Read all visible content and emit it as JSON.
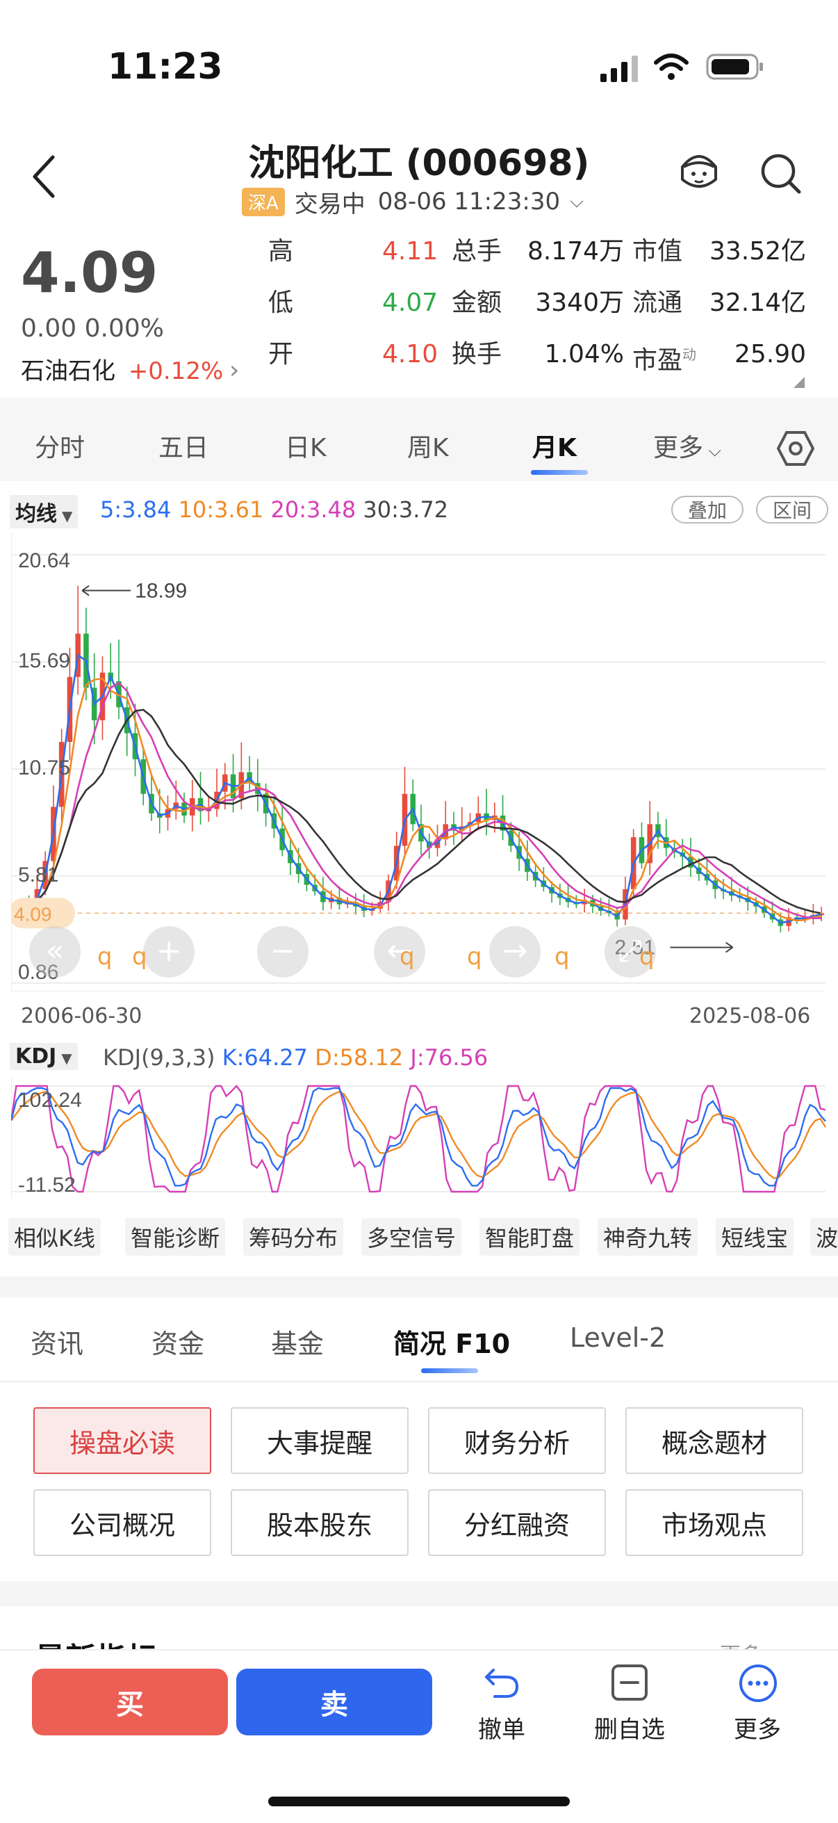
{
  "status": {
    "time": "11:23"
  },
  "header": {
    "title": "沈阳化工 (000698)",
    "market_badge": "深A",
    "status": "交易中",
    "datetime": "08-06 11:23:30"
  },
  "quote": {
    "price": "4.09",
    "change": "0.00 0.00%",
    "index_name": "石油石化",
    "index_change": "+0.12%",
    "rows": [
      {
        "l1": "高",
        "v1": "4.11",
        "l2": "总手",
        "v2": "8.174万",
        "l3": "市值",
        "v3": "33.52亿"
      },
      {
        "l1": "低",
        "v1": "4.07",
        "l2": "金额",
        "v2": "3340万",
        "l3": "流通",
        "v3": "32.14亿"
      },
      {
        "l1": "开",
        "v1": "4.10",
        "l2": "换手",
        "v2": "1.04%",
        "l3": "市盈",
        "l3sup": "动",
        "v3": "25.90"
      }
    ]
  },
  "tabs": [
    "分时",
    "五日",
    "日K",
    "周K",
    "月K",
    "更多"
  ],
  "ma": {
    "label": "均线",
    "ma5": "5:3.84",
    "ma10": "10:3.61",
    "ma20": "20:3.48",
    "ma30": "30:3.72",
    "overlay": "叠加",
    "range": "区间",
    "colors": {
      "ma5": "#2b6ef0",
      "ma10": "#f08a24",
      "ma20": "#d63fb6",
      "ma30": "#333333",
      "up": "#e74c3c",
      "down": "#2daa4a"
    }
  },
  "kchart": {
    "y_labels": [
      "20.64",
      "15.69",
      "10.75",
      "5.81",
      "0.86"
    ],
    "current": "4.09",
    "high_mark": "18.99",
    "low_mark": "2.51",
    "start_date": "2006-06-30",
    "end_date": "2025-08-06",
    "q": "q"
  },
  "kdj": {
    "label": "KDJ",
    "params": "KDJ(9,3,3)",
    "k": "K:64.27",
    "d": "D:58.12",
    "j": "J:76.56",
    "max": "102.24",
    "min": "-11.52"
  },
  "chart_data": [
    {
      "type": "candlestick",
      "title": "月K",
      "ylim": [
        0.86,
        20.64
      ],
      "x_start": "2006-06-30",
      "x_end": "2025-08-06",
      "current": 4.09,
      "period_high": 18.99,
      "period_low": 2.51,
      "series": [
        {
          "name": "MA5",
          "last": 3.84
        },
        {
          "name": "MA10",
          "last": 3.61
        },
        {
          "name": "MA20",
          "last": 3.48
        },
        {
          "name": "MA30",
          "last": 3.72
        }
      ],
      "closes": [
        4.5,
        4.2,
        5.2,
        6.5,
        9,
        12,
        15,
        17,
        14.5,
        13,
        15.2,
        14.8,
        13.6,
        12.4,
        11.2,
        9.6,
        8.7,
        8.5,
        8.9,
        9.2,
        8.6,
        9.4,
        8.8,
        8.9,
        9.7,
        10.5,
        9.4,
        10.6,
        10.1,
        9.6,
        8.7,
        8,
        7,
        6.4,
        5.9,
        5.4,
        5.1,
        4.6,
        4.8,
        4.5,
        4.6,
        4.4,
        4.2,
        4.3,
        4.6,
        5.6,
        7.2,
        9.6,
        8.2,
        7.4,
        7.1,
        7.5,
        8.2,
        7.9,
        8.1,
        8.3,
        8.7,
        8.4,
        8.6,
        7.9,
        7.2,
        6.6,
        6,
        5.6,
        5.3,
        5,
        4.8,
        4.6,
        4.5,
        4.7,
        4.4,
        4.2,
        4.1,
        3.8,
        5.2,
        7.6,
        6.4,
        8.2,
        7.6,
        7.1,
        6.9,
        6.7,
        6.2,
        5.9,
        5.6,
        5.2,
        5.1,
        4.9,
        4.8,
        4.6,
        4.4,
        4.1,
        3.8,
        3.5,
        3.9,
        3.8,
        3.9,
        4,
        4.1
      ]
    },
    {
      "type": "line",
      "title": "KDJ(9,3,3)",
      "ylim": [
        -11.52,
        102.24
      ],
      "series": [
        {
          "name": "K",
          "last": 64.27
        },
        {
          "name": "D",
          "last": 58.12
        },
        {
          "name": "J",
          "last": 76.56
        }
      ]
    }
  ],
  "tools": [
    "相似K线",
    "智能诊断",
    "筹码分布",
    "多空信号",
    "智能盯盘",
    "神奇九转",
    "短线宝",
    "波"
  ],
  "tabs2": [
    "资讯",
    "资金",
    "基金",
    "简况 F10",
    "Level-2"
  ],
  "f10": [
    "操盘必读",
    "大事提醒",
    "财务分析",
    "概念题材",
    "公司概况",
    "股本股东",
    "分红融资",
    "市场观点"
  ],
  "latest": {
    "title": "最新指标",
    "more": "更多 >"
  },
  "bottom": {
    "buy": "买",
    "sell": "卖",
    "cancel": "撤单",
    "remove": "删自选",
    "more": "更多"
  }
}
